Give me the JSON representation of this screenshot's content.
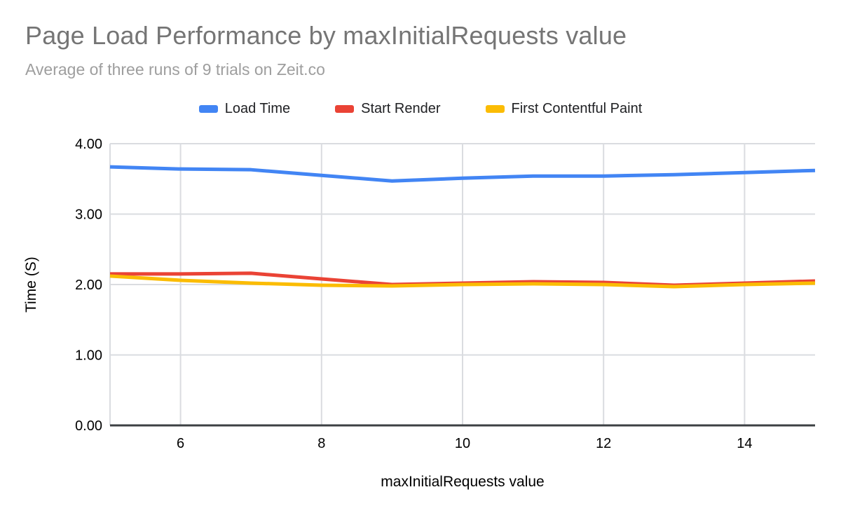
{
  "chart_data": {
    "type": "line",
    "title": "Page Load Performance by maxInitialRequests value",
    "subtitle": "Average of three runs of 9 trials on Zeit.co",
    "xlabel": "maxInitialRequests value",
    "ylabel": "Time (S)",
    "x": [
      5,
      6,
      7,
      8,
      9,
      10,
      11,
      12,
      13,
      14,
      15
    ],
    "series": [
      {
        "name": "Load Time",
        "color": "#4285f4",
        "values": [
          3.67,
          3.64,
          3.63,
          3.55,
          3.47,
          3.51,
          3.54,
          3.54,
          3.56,
          3.59,
          3.62
        ]
      },
      {
        "name": "Start Render",
        "color": "#ea4335",
        "values": [
          2.15,
          2.15,
          2.16,
          2.08,
          2.0,
          2.02,
          2.04,
          2.03,
          1.99,
          2.02,
          2.05
        ]
      },
      {
        "name": "First Contentful Paint",
        "color": "#fbbc04",
        "values": [
          2.12,
          2.06,
          2.02,
          1.99,
          1.98,
          2.0,
          2.01,
          2.0,
          1.97,
          2.0,
          2.02
        ]
      }
    ],
    "xlim": [
      5,
      15
    ],
    "ylim": [
      0,
      4
    ],
    "xticks": [
      6,
      8,
      10,
      12,
      14
    ],
    "yticks": [
      0,
      1,
      2,
      3,
      4
    ],
    "ytick_decimals": 2,
    "grid": true,
    "legend_position": "top",
    "style": {
      "background": "#ffffff",
      "title_color": "#757575",
      "subtitle_color": "#9e9e9e",
      "grid_color": "#dadce0",
      "baseline_color": "#3c4043",
      "tick_color": "#000000",
      "axis_title_color": "#000000",
      "legend_text_color": "#202124",
      "line_width": 5
    }
  }
}
